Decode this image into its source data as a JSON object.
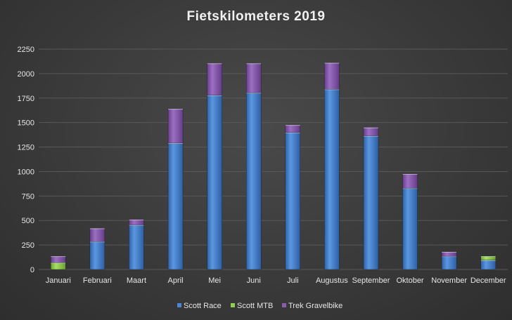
{
  "chart_data": {
    "type": "bar",
    "stacked": true,
    "title": "Fietskilometers  2019",
    "xlabel": "",
    "ylabel": "",
    "categories": [
      "Januari",
      "Februari",
      "Maart",
      "April",
      "Mei",
      "Juni",
      "Juli",
      "Augustus",
      "September",
      "Oktober",
      "November",
      "December"
    ],
    "series": [
      {
        "name": "Scott Race",
        "color": "#4a86d4",
        "values": [
          0,
          285,
          455,
          1290,
          1780,
          1805,
          1400,
          1840,
          1365,
          830,
          135,
          95
        ]
      },
      {
        "name": "Scott MTB",
        "color": "#8fd14f",
        "values": [
          70,
          0,
          0,
          0,
          0,
          0,
          0,
          0,
          0,
          0,
          0,
          40
        ]
      },
      {
        "name": "Trek Gravelbike",
        "color": "#8a5cb0",
        "values": [
          65,
          135,
          55,
          350,
          325,
          300,
          75,
          270,
          85,
          145,
          45,
          0
        ]
      }
    ],
    "ylim": [
      0,
      2250
    ],
    "yticks": [
      0,
      250,
      500,
      750,
      1000,
      1250,
      1500,
      1750,
      2000,
      2250
    ],
    "grid": true,
    "legend": "bottom"
  }
}
